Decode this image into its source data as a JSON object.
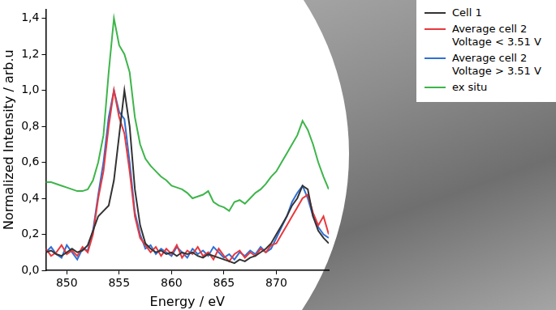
{
  "chart_data": {
    "type": "line",
    "x_label": "Energy / eV",
    "y_label": "Normalized Intensity / arb.u",
    "x": [
      848,
      848.5,
      849,
      849.5,
      850,
      850.5,
      851,
      851.5,
      852,
      852.5,
      853,
      853.5,
      854,
      854.5,
      855,
      855.5,
      856,
      856.5,
      857,
      857.5,
      858,
      858.5,
      859,
      859.5,
      860,
      860.5,
      861,
      861.5,
      862,
      862.5,
      863,
      863.5,
      864,
      864.5,
      865,
      865.5,
      866,
      866.5,
      867,
      867.5,
      868,
      868.5,
      869,
      869.5,
      870,
      870.5,
      871,
      871.5,
      872,
      872.5,
      873,
      873.5,
      874,
      874.5,
      875
    ],
    "series": [
      {
        "name": "Cell 1",
        "color": "#333333",
        "values": [
          0.1,
          0.11,
          0.09,
          0.08,
          0.1,
          0.12,
          0.1,
          0.11,
          0.14,
          0.22,
          0.3,
          0.33,
          0.36,
          0.5,
          0.75,
          1.0,
          0.8,
          0.45,
          0.25,
          0.15,
          0.12,
          0.1,
          0.11,
          0.09,
          0.1,
          0.08,
          0.1,
          0.09,
          0.1,
          0.08,
          0.07,
          0.09,
          0.08,
          0.07,
          0.06,
          0.05,
          0.04,
          0.06,
          0.05,
          0.07,
          0.08,
          0.1,
          0.12,
          0.15,
          0.2,
          0.25,
          0.3,
          0.36,
          0.4,
          0.47,
          0.45,
          0.3,
          0.22,
          0.18,
          0.15
        ]
      },
      {
        "name": "Average cell 2 Voltage < 3.51 V",
        "color": "#e8383d",
        "values": [
          0.12,
          0.08,
          0.1,
          0.14,
          0.09,
          0.11,
          0.08,
          0.13,
          0.1,
          0.2,
          0.4,
          0.55,
          0.8,
          1.0,
          0.85,
          0.76,
          0.55,
          0.3,
          0.18,
          0.14,
          0.1,
          0.13,
          0.08,
          0.12,
          0.09,
          0.14,
          0.07,
          0.11,
          0.09,
          0.13,
          0.08,
          0.1,
          0.06,
          0.12,
          0.08,
          0.05,
          0.09,
          0.11,
          0.07,
          0.1,
          0.08,
          0.12,
          0.1,
          0.14,
          0.15,
          0.2,
          0.25,
          0.3,
          0.35,
          0.4,
          0.42,
          0.32,
          0.25,
          0.3,
          0.2
        ]
      },
      {
        "name": "Average cell 2 Voltage > 3.51 V",
        "color": "#2f6fd6",
        "values": [
          0.1,
          0.13,
          0.09,
          0.07,
          0.14,
          0.1,
          0.06,
          0.12,
          0.11,
          0.22,
          0.42,
          0.6,
          0.85,
          1.0,
          0.88,
          0.84,
          0.6,
          0.32,
          0.2,
          0.12,
          0.14,
          0.09,
          0.12,
          0.1,
          0.08,
          0.13,
          0.1,
          0.07,
          0.12,
          0.09,
          0.11,
          0.08,
          0.13,
          0.1,
          0.07,
          0.09,
          0.06,
          0.1,
          0.08,
          0.11,
          0.09,
          0.13,
          0.1,
          0.12,
          0.18,
          0.24,
          0.3,
          0.38,
          0.43,
          0.47,
          0.4,
          0.3,
          0.24,
          0.2,
          0.18
        ]
      },
      {
        "name": "ex situ",
        "color": "#3db54a",
        "values": [
          0.49,
          0.49,
          0.48,
          0.47,
          0.46,
          0.45,
          0.44,
          0.44,
          0.45,
          0.5,
          0.6,
          0.75,
          1.1,
          1.4,
          1.25,
          1.2,
          1.1,
          0.85,
          0.7,
          0.62,
          0.58,
          0.55,
          0.52,
          0.5,
          0.47,
          0.46,
          0.45,
          0.43,
          0.4,
          0.41,
          0.42,
          0.44,
          0.38,
          0.36,
          0.35,
          0.33,
          0.38,
          0.39,
          0.37,
          0.4,
          0.43,
          0.45,
          0.48,
          0.52,
          0.55,
          0.6,
          0.65,
          0.7,
          0.75,
          0.83,
          0.78,
          0.7,
          0.6,
          0.52,
          0.45
        ]
      }
    ],
    "xlim": [
      848,
      875
    ],
    "xticks": [
      850,
      855,
      860,
      865,
      870
    ],
    "ylim": [
      0,
      1.45
    ],
    "yticks": [
      {
        "value": 0,
        "label": "0,0"
      },
      {
        "value": 0.2,
        "label": "0,2"
      },
      {
        "value": 0.4,
        "label": "0,4"
      },
      {
        "value": 0.6,
        "label": "0,6"
      },
      {
        "value": 0.8,
        "label": "0,8"
      },
      {
        "value": 1.0,
        "label": "1,0"
      },
      {
        "value": 1.2,
        "label": "1,2"
      },
      {
        "value": 1.4,
        "label": "1,4"
      }
    ],
    "grid": false,
    "legend": "upper right"
  }
}
